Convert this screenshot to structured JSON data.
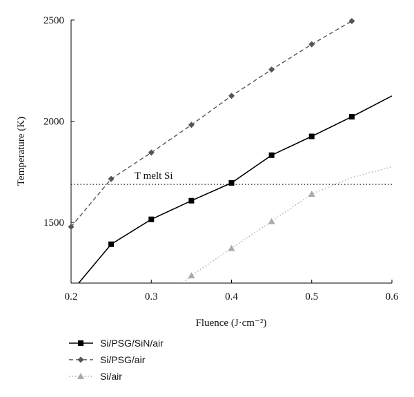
{
  "chart_data": {
    "type": "line",
    "title": "",
    "xlabel": "Fluence (J·cm⁻²)",
    "ylabel": "Temperature (K)",
    "xlim": [
      0.2,
      0.6
    ],
    "ylim": [
      1200,
      2500
    ],
    "x_ticks": [
      "0.2",
      "0.3",
      "0.4",
      "0.5",
      "0.6"
    ],
    "y_ticks": [
      "1500",
      "2000",
      "2500"
    ],
    "x_tick_values": [
      0.2,
      0.3,
      0.4,
      0.5,
      0.6
    ],
    "y_tick_values": [
      1500,
      2000,
      2500
    ],
    "grid": false,
    "legend_position": "bottom-left",
    "reference_line": {
      "label": "T melt Si",
      "y": 1688
    },
    "series": [
      {
        "name": "Si/PSG/SiN/air",
        "color": "#000000",
        "dash": "solid",
        "marker": "square",
        "line_x": [
          0.2,
          0.25,
          0.3,
          0.35,
          0.4,
          0.45,
          0.5,
          0.55,
          0.6
        ],
        "line_y": [
          1155,
          1392,
          1515,
          1607,
          1695,
          1832,
          1925,
          2022,
          2125
        ],
        "x": [
          0.25,
          0.3,
          0.35,
          0.4,
          0.45,
          0.5,
          0.55
        ],
        "y": [
          1392,
          1515,
          1607,
          1695,
          1832,
          1925,
          2022
        ]
      },
      {
        "name": "Si/PSG/air",
        "color": "#555555",
        "dash": "dashed",
        "marker": "diamond",
        "line_x": [
          0.2,
          0.25,
          0.3,
          0.35,
          0.4,
          0.45,
          0.5,
          0.55
        ],
        "line_y": [
          1478,
          1715,
          1845,
          1982,
          2125,
          2255,
          2380,
          2495
        ],
        "x": [
          0.2,
          0.25,
          0.3,
          0.35,
          0.4,
          0.45,
          0.5,
          0.55
        ],
        "y": [
          1478,
          1715,
          1845,
          1982,
          2125,
          2255,
          2380,
          2495
        ]
      },
      {
        "name": "Si/air",
        "color": "#aaaaaa",
        "dash": "dotted",
        "marker": "triangle",
        "line_x": [
          0.325,
          0.35,
          0.4,
          0.45,
          0.5,
          0.55,
          0.6
        ],
        "line_y": [
          1150,
          1237,
          1372,
          1505,
          1640,
          1722,
          1775
        ],
        "x": [
          0.35,
          0.4,
          0.45,
          0.5
        ],
        "y": [
          1237,
          1372,
          1505,
          1640
        ]
      }
    ]
  }
}
